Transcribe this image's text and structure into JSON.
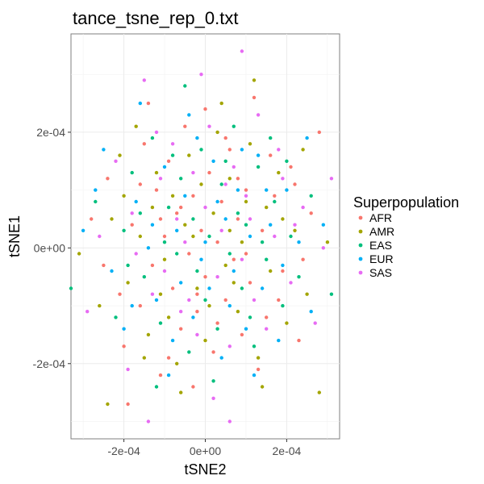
{
  "chart_data": {
    "type": "scatter",
    "title": "tance_tsne_rep_0.txt",
    "xlabel": "tSNE2",
    "ylabel": "tSNE1",
    "xlim": [
      -0.00033,
      0.00033
    ],
    "ylim": [
      -0.00033,
      0.00037
    ],
    "xticks": [
      {
        "value": -0.0002,
        "label": "-2e-04"
      },
      {
        "value": 0,
        "label": "0e+00"
      },
      {
        "value": 0.0002,
        "label": "2e-04"
      }
    ],
    "yticks": [
      {
        "value": -0.0002,
        "label": "-2e-04"
      },
      {
        "value": 0,
        "label": "0e+00"
      },
      {
        "value": 0.0002,
        "label": "2e-04"
      }
    ],
    "grid": true,
    "legend": {
      "title": "Superpopulation",
      "placement": "right",
      "entries": [
        {
          "label": "AFR",
          "color": "#F8766D"
        },
        {
          "label": "AMR",
          "color": "#A3A500"
        },
        {
          "label": "EAS",
          "color": "#00BF7D"
        },
        {
          "label": "EUR",
          "color": "#00B0F6"
        },
        {
          "label": "SAS",
          "color": "#E76BF3"
        }
      ]
    },
    "series": [
      {
        "name": "AFR",
        "color": "#F8766D",
        "points": [
          [
            -0.00028,
            5e-05
          ],
          [
            -0.00024,
            0.00012
          ],
          [
            -0.0002,
            -0.00017
          ],
          [
            -0.00018,
            4e-05
          ],
          [
            -0.00016,
            -0.0001
          ],
          [
            -0.00015,
            0.00018
          ],
          [
            -0.00013,
            -3e-05
          ],
          [
            -0.00012,
            0.0001
          ],
          [
            -0.00011,
            -0.00022
          ],
          [
            -0.0001,
            2e-05
          ],
          [
            -9e-05,
            0.00015
          ],
          [
            -8e-05,
            -7e-05
          ],
          [
            -7e-05,
            6e-05
          ],
          [
            -6e-05,
            -0.00014
          ],
          [
            -5e-05,
            0.00021
          ],
          [
            -4e-05,
            -1e-05
          ],
          [
            -3e-05,
            9e-05
          ],
          [
            -2e-05,
            -0.00011
          ],
          [
            -1e-05,
            3e-05
          ],
          [
            0.0,
            -5e-05
          ],
          [
            1e-05,
            0.00013
          ],
          [
            2e-05,
            -0.00018
          ],
          [
            3e-05,
            1e-05
          ],
          [
            4e-05,
            8e-05
          ],
          [
            5e-05,
            -9e-05
          ],
          [
            6e-05,
            0.00017
          ],
          [
            7e-05,
            -2e-05
          ],
          [
            8e-05,
            5e-05
          ],
          [
            9e-05,
            -0.00015
          ],
          [
            0.0001,
            0.0001
          ],
          [
            0.00011,
            -6e-05
          ],
          [
            0.00012,
            0.00026
          ],
          [
            0.00014,
            3e-05
          ],
          [
            0.00015,
            -0.00012
          ],
          [
            0.00017,
            9e-05
          ],
          [
            0.00019,
            -4e-05
          ],
          [
            0.00021,
            0.00014
          ],
          [
            0.00023,
            -0.00016
          ],
          [
            0.00026,
            6e-05
          ],
          [
            0.00028,
            0.0002
          ],
          [
            -0.00025,
            -3e-05
          ],
          [
            -0.00019,
            -0.00027
          ],
          [
            -0.00014,
            0.00025
          ],
          [
            -3e-05,
            -0.00024
          ],
          [
            0.0,
            0.00024
          ],
          [
            5e-05,
            0.00019
          ],
          [
            0.00013,
            -0.00021
          ],
          [
            0.00022,
            0.00011
          ],
          [
            -9e-05,
            -0.00019
          ],
          [
            0.00016,
            0.00016
          ],
          [
            -6e-05,
            7e-05
          ],
          [
            -2e-05,
            -8e-05
          ],
          [
            3e-05,
            -0.00013
          ],
          [
            8e-05,
            0.00012
          ],
          [
            -0.00011,
            5e-05
          ],
          [
            0.0001,
            -1e-05
          ],
          [
            -0.00016,
            0.00011
          ],
          [
            0.00018,
            -9e-05
          ],
          [
            -0.00021,
            -8e-05
          ],
          [
            0.00024,
            -2e-05
          ]
        ]
      },
      {
        "name": "AMR",
        "color": "#A3A500",
        "points": [
          [
            -0.00031,
            -1e-05
          ],
          [
            -0.00026,
            -0.0001
          ],
          [
            -0.00023,
            5e-05
          ],
          [
            -0.00021,
            0.00016
          ],
          [
            -0.00019,
            -6e-05
          ],
          [
            -0.00016,
            2e-05
          ],
          [
            -0.00014,
            -0.00015
          ],
          [
            -0.00012,
            0.00013
          ],
          [
            -0.0001,
            -2e-05
          ],
          [
            -8e-05,
            9e-05
          ],
          [
            -7e-05,
            -0.0002
          ],
          [
            -5e-05,
            4e-05
          ],
          [
            -4e-05,
            0.00016
          ],
          [
            -2e-05,
            -7e-05
          ],
          [
            -1e-05,
            0.00011
          ],
          [
            0.0,
            -0.00016
          ],
          [
            2e-05,
            6e-05
          ],
          [
            3e-05,
            0.0002
          ],
          [
            5e-05,
            -3e-05
          ],
          [
            6e-05,
            0.00012
          ],
          [
            8e-05,
            -0.00011
          ],
          [
            9e-05,
            1e-05
          ],
          [
            0.00011,
            0.00018
          ],
          [
            0.00012,
            0.00029
          ],
          [
            0.00013,
            -0.00019
          ],
          [
            0.00015,
            7e-05
          ],
          [
            0.00016,
            -4e-05
          ],
          [
            0.00018,
            0.00013
          ],
          [
            0.0002,
            -0.00013
          ],
          [
            0.00022,
            3e-05
          ],
          [
            0.00025,
            -8e-05
          ],
          [
            0.00028,
            -0.00025
          ],
          [
            0.0003,
            1e-05
          ],
          [
            -0.00024,
            -0.00027
          ],
          [
            -0.00017,
            0.00021
          ],
          [
            -6e-05,
            -0.00025
          ],
          [
            4e-05,
            0.00025
          ],
          [
            0.00014,
            -0.00024
          ],
          [
            -0.00013,
            7e-05
          ],
          [
            7e-05,
            -6e-05
          ],
          [
            -3e-05,
            2e-05
          ],
          [
            1e-05,
            -0.0001
          ],
          [
            -9e-05,
            -0.00012
          ],
          [
            0.0001,
            8e-05
          ],
          [
            0.00019,
            5e-05
          ],
          [
            -0.0002,
            9e-05
          ],
          [
            0.00024,
            0.00017
          ],
          [
            -0.00011,
            -8e-05
          ],
          [
            6e-05,
            3e-05
          ],
          [
            -0.00015,
            -0.00019
          ]
        ]
      },
      {
        "name": "EAS",
        "color": "#00BF7D",
        "points": [
          [
            -0.00033,
            -7e-05
          ],
          [
            -0.00027,
            8e-05
          ],
          [
            -0.00022,
            -0.00012
          ],
          [
            -0.0002,
            3e-05
          ],
          [
            -0.00018,
            0.00013
          ],
          [
            -0.00015,
            -5e-05
          ],
          [
            -0.00013,
            0.00019
          ],
          [
            -0.00011,
            -0.00013
          ],
          [
            -9e-05,
            7e-05
          ],
          [
            -7e-05,
            -1e-05
          ],
          [
            -6e-05,
            0.00012
          ],
          [
            -4e-05,
            -0.00018
          ],
          [
            -3e-05,
            5e-05
          ],
          [
            -1e-05,
            0.00017
          ],
          [
            0.0,
            -9e-05
          ],
          [
            1e-05,
            2e-05
          ],
          [
            3e-05,
            -0.00014
          ],
          [
            4e-05,
            0.00011
          ],
          [
            6e-05,
            -1e-05
          ],
          [
            7e-05,
            0.00021
          ],
          [
            9e-05,
            -7e-05
          ],
          [
            0.0001,
            4e-05
          ],
          [
            0.00012,
            -0.00017
          ],
          [
            0.00013,
            0.00014
          ],
          [
            0.00015,
            -2e-05
          ],
          [
            0.00017,
            8e-05
          ],
          [
            0.00019,
            -0.0001
          ],
          [
            0.00021,
            2e-05
          ],
          [
            0.00023,
            -5e-05
          ],
          [
            0.00026,
            9e-05
          ],
          [
            0.00031,
            -8e-05
          ],
          [
            -5e-05,
            0.00028
          ],
          [
            2e-05,
            -0.00023
          ],
          [
            -0.00012,
            -0.00024
          ],
          [
            0.00016,
            0.00019
          ],
          [
            -8e-05,
            0.00016
          ],
          [
            8e-05,
            6e-05
          ],
          [
            -2e-05,
            -4e-05
          ],
          [
            0.00011,
            -0.00012
          ],
          [
            -0.00016,
            6e-05
          ],
          [
            0.0002,
            0.00015
          ],
          [
            -0.0001,
            1e-05
          ],
          [
            5e-05,
            0.00015
          ],
          [
            -0.00019,
            -3e-05
          ],
          [
            0.00014,
            1e-05
          ]
        ]
      },
      {
        "name": "EUR",
        "color": "#00B0F6",
        "points": [
          [
            -0.0003,
            3e-05
          ],
          [
            -0.00025,
            0.00017
          ],
          [
            -0.00023,
            -4e-05
          ],
          [
            -0.0002,
            -0.00014
          ],
          [
            -0.00017,
            8e-05
          ],
          [
            -0.00016,
            0.00025
          ],
          [
            -0.00014,
            0.0
          ],
          [
            -0.00012,
            -9e-05
          ],
          [
            -0.0001,
            0.00014
          ],
          [
            -8e-05,
            -0.00016
          ],
          [
            -7e-05,
            3e-05
          ],
          [
            -5e-05,
            9e-05
          ],
          [
            -3e-05,
            -0.00012
          ],
          [
            -2e-05,
            0.00019
          ],
          [
            0.0,
            1e-05
          ],
          [
            1e-05,
            -7e-05
          ],
          [
            2e-05,
            0.00015
          ],
          [
            4e-05,
            -0.00019
          ],
          [
            5e-05,
            5e-05
          ],
          [
            7e-05,
            -4e-05
          ],
          [
            8e-05,
            0.0001
          ],
          [
            0.0001,
            -0.00014
          ],
          [
            0.00011,
            2e-05
          ],
          [
            0.00013,
            0.00016
          ],
          [
            0.00014,
            -7e-05
          ],
          [
            0.00016,
            4e-05
          ],
          [
            0.00018,
            -0.00016
          ],
          [
            0.0002,
            0.0001
          ],
          [
            0.00023,
            1e-05
          ],
          [
            0.00026,
            -0.00011
          ],
          [
            0.00029,
            4e-05
          ],
          [
            -0.00027,
            0.0001
          ],
          [
            0.00025,
            0.00019
          ],
          [
            -9e-05,
            -0.00022
          ],
          [
            0.00012,
            -0.00022
          ],
          [
            -4e-05,
            0.00023
          ],
          [
            3e-05,
            8e-05
          ],
          [
            -0.00013,
            4e-05
          ],
          [
            6e-05,
            -0.0001
          ],
          [
            -6e-05,
            -6e-05
          ],
          [
            0.00015,
            0.0001
          ],
          [
            -0.00018,
            -0.0001
          ],
          [
            9e-05,
            0.00017
          ],
          [
            -1e-05,
            -2e-05
          ],
          [
            0.00019,
            -3e-05
          ]
        ]
      },
      {
        "name": "SAS",
        "color": "#E76BF3",
        "points": [
          [
            -0.00029,
            -0.00011
          ],
          [
            -0.00026,
            2e-05
          ],
          [
            -0.00022,
            0.00015
          ],
          [
            -0.00019,
            -0.00021
          ],
          [
            -0.00018,
            6e-05
          ],
          [
            -0.00015,
            0.00029
          ],
          [
            -0.00013,
            -8e-05
          ],
          [
            -0.00011,
            0.00012
          ],
          [
            -0.0001,
            -4e-05
          ],
          [
            -8e-05,
            0.00018
          ],
          [
            -6e-05,
            -0.00011
          ],
          [
            -5e-05,
            1e-05
          ],
          [
            -3e-05,
            0.00013
          ],
          [
            -2e-05,
            -0.00015
          ],
          [
            0.0,
            7e-05
          ],
          [
            1e-05,
            0.00021
          ],
          [
            3e-05,
            -5e-05
          ],
          [
            4e-05,
            3e-05
          ],
          [
            6e-05,
            -0.00017
          ],
          [
            7e-05,
            0.00014
          ],
          [
            9e-05,
            -2e-05
          ],
          [
            0.0001,
            9e-05
          ],
          [
            0.00012,
            -9e-05
          ],
          [
            0.00013,
            0.00023
          ],
          [
            0.00015,
            -0.00014
          ],
          [
            0.00017,
            2e-05
          ],
          [
            0.00019,
            0.00012
          ],
          [
            0.00021,
            -6e-05
          ],
          [
            0.00024,
            7e-05
          ],
          [
            0.00027,
            -0.00013
          ],
          [
            0.00029,
            0.0
          ],
          [
            0.00031,
            0.00012
          ],
          [
            6e-05,
            -0.0003
          ],
          [
            9e-05,
            0.00034
          ],
          [
            -1e-05,
            0.0003
          ],
          [
            -0.00014,
            -0.0003
          ],
          [
            2e-05,
            -0.00026
          ],
          [
            -7e-05,
            5e-05
          ],
          [
            5e-05,
            0.00011
          ],
          [
            -0.00012,
            0.0002
          ],
          [
            0.00011,
            5e-05
          ],
          [
            -4e-05,
            -9e-05
          ],
          [
            0.00018,
            0.00017
          ],
          [
            -0.00017,
            -1e-05
          ],
          [
            0.00022,
            4e-05
          ]
        ]
      }
    ]
  }
}
